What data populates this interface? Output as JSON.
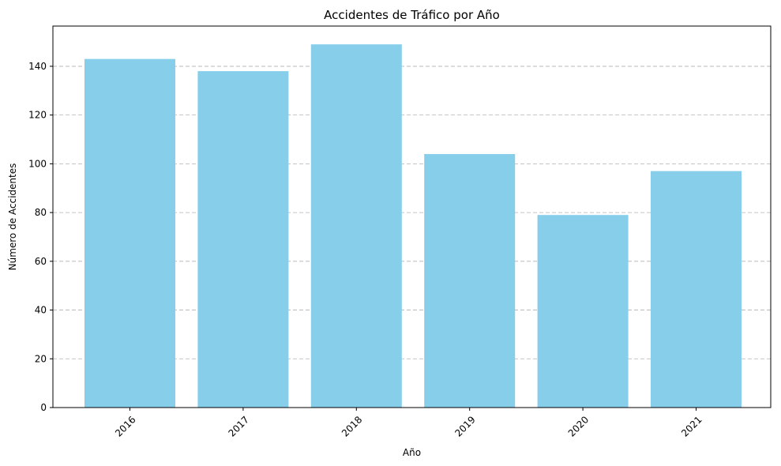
{
  "chart_data": {
    "type": "bar",
    "title": "Accidentes de Tráfico por Año",
    "xlabel": "Año",
    "ylabel": "Número de Accidentes",
    "categories": [
      "2016",
      "2017",
      "2018",
      "2019",
      "2020",
      "2021"
    ],
    "values": [
      143,
      138,
      149,
      104,
      79,
      97
    ],
    "ylim": [
      0,
      156.5
    ],
    "yticks": [
      0,
      20,
      40,
      60,
      80,
      100,
      120,
      140
    ],
    "grid": "y-dashed",
    "bar_color": "#87CEEB",
    "x_tick_rotation_deg": 45
  }
}
